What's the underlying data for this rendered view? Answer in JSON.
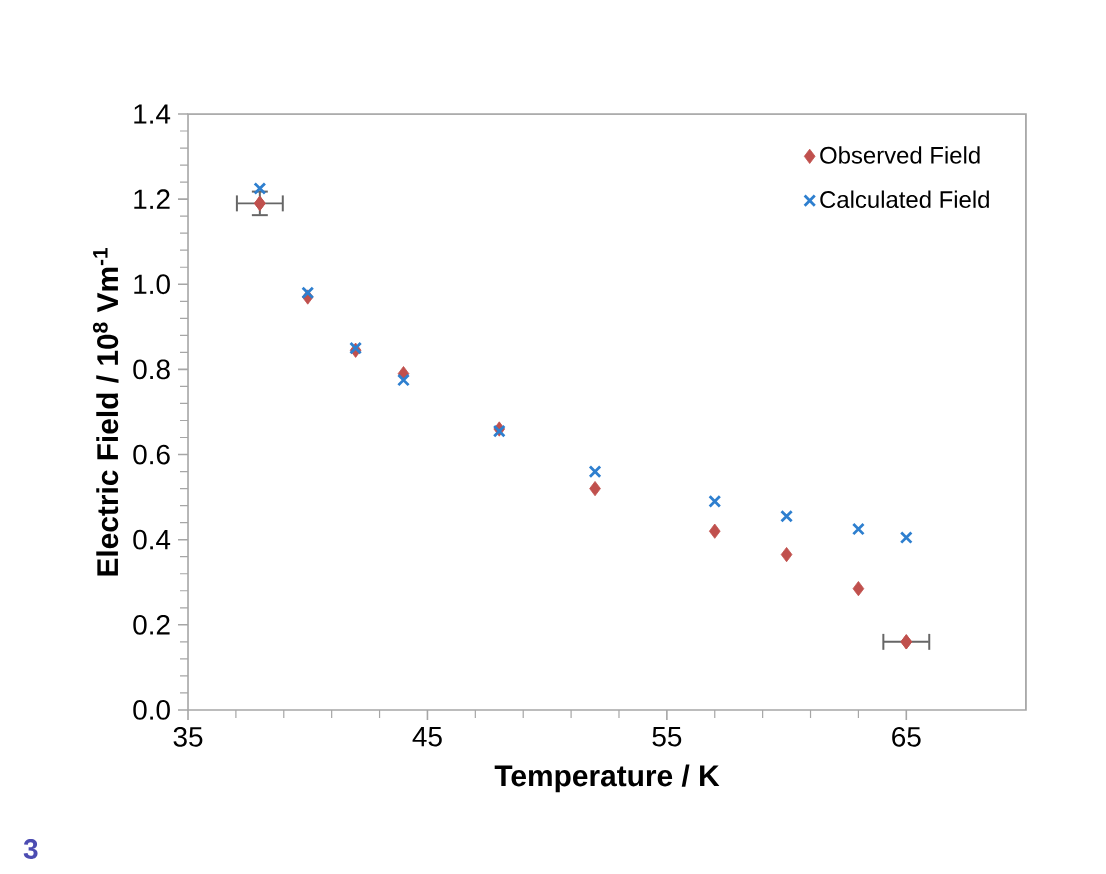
{
  "chart_data": {
    "type": "scatter",
    "xlabel": "Temperature / K",
    "ylabel": "Electric Field / 10$^{8}$ Vm$^{-1}$",
    "x": [
      38,
      40,
      42,
      44,
      48,
      52,
      57,
      60,
      63,
      65
    ],
    "series": [
      {
        "name": "Observed Field",
        "color": "#c0504d",
        "marker": "diamond",
        "values": [
          1.19,
          0.97,
          0.845,
          0.79,
          0.66,
          0.52,
          0.42,
          0.365,
          0.285,
          0.16
        ],
        "errors": [
          0.03,
          null,
          null,
          null,
          null,
          null,
          null,
          null,
          null,
          null
        ],
        "xerrors": [
          1,
          null,
          null,
          null,
          null,
          null,
          null,
          null,
          null,
          1
        ]
      },
      {
        "name": "Calculated Field",
        "color": "#2e7fcf",
        "marker": "cross",
        "values": [
          1.225,
          0.98,
          0.85,
          0.775,
          0.655,
          0.56,
          0.49,
          0.455,
          0.425,
          0.405
        ]
      }
    ],
    "xlim": [
      35,
      70
    ],
    "xticks": [
      35,
      45,
      55,
      65
    ],
    "ylim": [
      0,
      1.4
    ],
    "yticks": [
      {
        "value": 0,
        "label": "0.0"
      },
      {
        "value": 0.2,
        "label": "0.2"
      },
      {
        "value": 0.4,
        "label": "0.4"
      },
      {
        "value": 0.6,
        "label": "0.6"
      },
      {
        "value": 0.8,
        "label": "0.8"
      },
      {
        "value": 1.0,
        "label": "1.0"
      },
      {
        "value": 1.2,
        "label": "1.2"
      },
      {
        "value": 1.4,
        "label": "1.4"
      }
    ],
    "grid": false,
    "legend": "top right",
    "annotations": [
      "3"
    ]
  }
}
